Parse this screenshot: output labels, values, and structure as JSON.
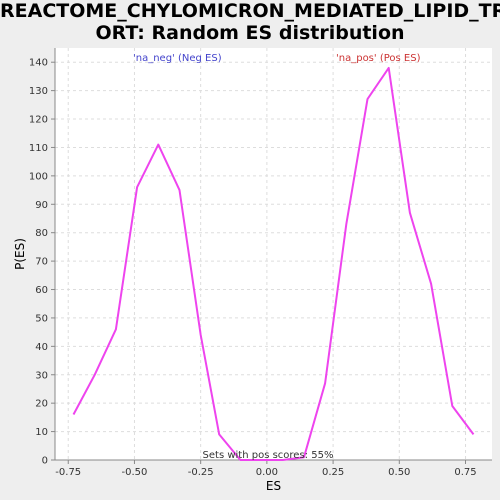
{
  "chart_data": {
    "type": "line",
    "title_line1": "REACTOME_CHYLOMICRON_MEDIATED_LIPID_TRANSP",
    "title_line2": "ORT: Random ES distribution",
    "xlabel": "ES",
    "ylabel": "P(ES)",
    "xlim": [
      -0.8,
      0.85
    ],
    "ylim": [
      0,
      145
    ],
    "xticks": [
      -0.75,
      -0.5,
      -0.25,
      0.0,
      0.25,
      0.5,
      0.75
    ],
    "xtick_labels": [
      "-0.75",
      "-0.50",
      "-0.25",
      "0.00",
      "0.25",
      "0.50",
      "0.75"
    ],
    "yticks": [
      0,
      10,
      20,
      30,
      40,
      50,
      60,
      70,
      80,
      90,
      100,
      110,
      120,
      130,
      140
    ],
    "grid": true,
    "series": [
      {
        "color": "#ee44ee",
        "x": [
          -0.73,
          -0.65,
          -0.57,
          -0.49,
          -0.41,
          -0.33,
          -0.25,
          -0.18,
          -0.1,
          -0.02,
          0.06,
          0.14,
          0.22,
          0.3,
          0.38,
          0.46,
          0.54,
          0.62,
          0.7,
          0.78
        ],
        "y": [
          16,
          30,
          46,
          96,
          111,
          95,
          44,
          9,
          0,
          0,
          0,
          1,
          27,
          83,
          127,
          138,
          87,
          62,
          19,
          9
        ]
      }
    ],
    "annotations": {
      "neg": {
        "text": "'na_neg' (Neg ES)",
        "color": "#4444cc"
      },
      "pos": {
        "text": "'na_pos' (Pos ES)",
        "color": "#cc3333"
      },
      "footer": {
        "text": "Sets with pos scores: 55%",
        "color": "#333333"
      }
    }
  }
}
